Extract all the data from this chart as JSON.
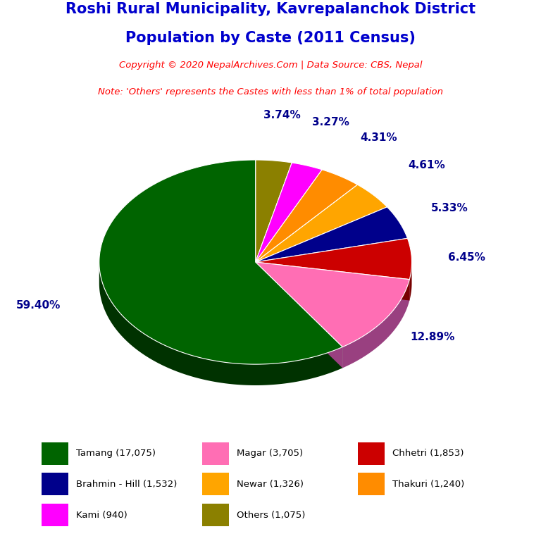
{
  "title_line1": "Roshi Rural Municipality, Kavrepalanchok District",
  "title_line2": "Population by Caste (2011 Census)",
  "title_color": "#0000CD",
  "copyright_text": "Copyright © 2020 NepalArchives.Com | Data Source: CBS, Nepal",
  "note_text": "Note: 'Others' represents the Castes with less than 1% of total population",
  "subtitle_color": "#FF0000",
  "bg_color": "#FFFFFF",
  "labels": [
    "Tamang",
    "Magar",
    "Chhetri",
    "Brahmin - Hill",
    "Newar",
    "Thakuri",
    "Kami",
    "Others"
  ],
  "values": [
    17075,
    3705,
    1853,
    1532,
    1326,
    1240,
    940,
    1075
  ],
  "percentages": [
    59.4,
    12.89,
    6.45,
    5.33,
    4.61,
    4.31,
    3.27,
    3.74
  ],
  "colors": [
    "#006400",
    "#FF6EB4",
    "#CC0000",
    "#00008B",
    "#FFA500",
    "#FF8C00",
    "#FF00FF",
    "#8B8000"
  ],
  "shadow_colors": [
    "#003200",
    "#994080",
    "#770000",
    "#000040",
    "#CC7700",
    "#CC6600",
    "#BB00BB",
    "#555500"
  ],
  "legend_labels": [
    "Tamang (17,075)",
    "Magar (3,705)",
    "Chhetri (1,853)",
    "Brahmin - Hill (1,532)",
    "Newar (1,326)",
    "Thakuri (1,240)",
    "Kami (940)",
    "Others (1,075)"
  ],
  "pct_label_color": "#00008B",
  "pct_fontsize": 11
}
